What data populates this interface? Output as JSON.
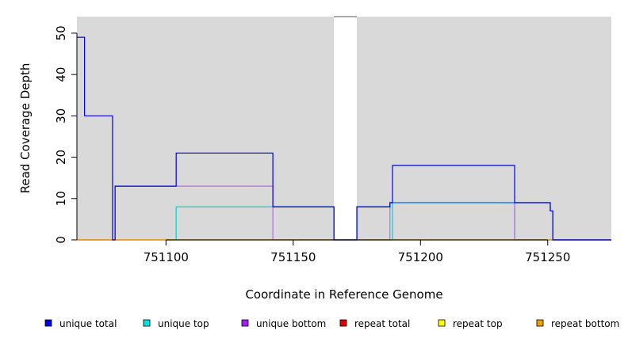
{
  "chart_data": {
    "type": "line",
    "xlabel": "Coordinate in Reference Genome",
    "ylabel": "Read Coverage Depth",
    "xlim": [
      751065,
      751275
    ],
    "ylim": [
      0,
      54
    ],
    "x_ticks": [
      751100,
      751150,
      751200,
      751250
    ],
    "x_tick_labels": [
      "751100",
      "751150",
      "751200",
      "751250"
    ],
    "y_ticks": [
      0,
      10,
      20,
      30,
      40,
      50
    ],
    "y_tick_labels": [
      "0",
      "10",
      "20",
      "30",
      "40",
      "50"
    ],
    "background_color": "#d9d9d9",
    "gap_region": [
      751166,
      751175
    ],
    "grid": false,
    "legend_placement": "bottom",
    "series": [
      {
        "name": "unique top",
        "color": "#00d0d0",
        "points": [
          [
            751065,
            0
          ],
          [
            751104,
            0
          ],
          [
            751104,
            8
          ],
          [
            751166,
            8
          ],
          [
            751166,
            0
          ],
          [
            751175,
            0
          ],
          [
            751189,
            0
          ],
          [
            751189,
            9
          ],
          [
            751237,
            9
          ],
          [
            751237,
            0
          ],
          [
            751275,
            0
          ]
        ]
      },
      {
        "name": "unique bottom",
        "color": "#b070e0",
        "points": [
          [
            751065,
            0
          ],
          [
            751080,
            0
          ],
          [
            751080,
            13
          ],
          [
            751142,
            13
          ],
          [
            751142,
            0
          ],
          [
            751166,
            0
          ],
          [
            751175,
            0
          ],
          [
            751188,
            0
          ],
          [
            751188,
            9
          ],
          [
            751237,
            9
          ],
          [
            751237,
            0
          ],
          [
            751275,
            0
          ]
        ]
      },
      {
        "name": "repeat total",
        "color": "#e00000",
        "points": [
          [
            751065,
            0
          ],
          [
            751275,
            0
          ]
        ]
      },
      {
        "name": "repeat top",
        "color": "#e0e000",
        "points": [
          [
            751065,
            0
          ],
          [
            751275,
            0
          ]
        ]
      },
      {
        "name": "repeat bottom",
        "color": "#f0a000",
        "points": [
          [
            751065,
            0
          ],
          [
            751275,
            0
          ]
        ]
      },
      {
        "name": "",
        "color": "#1a7ae8",
        "points": [
          [
            751142,
            8
          ],
          [
            751166,
            8
          ],
          [
            751166,
            0
          ],
          [
            751175,
            0
          ],
          [
            751175,
            8
          ],
          [
            751188,
            8
          ],
          [
            751188,
            9
          ],
          [
            751189,
            9
          ],
          [
            751189,
            9
          ],
          [
            751237,
            9
          ],
          [
            751237,
            9
          ],
          [
            751251,
            9
          ],
          [
            751251,
            7
          ],
          [
            751252,
            7
          ],
          [
            751252,
            0
          ],
          [
            751275,
            0
          ]
        ]
      },
      {
        "name": "unique total",
        "color": "#0000e0",
        "points": [
          [
            751065,
            49
          ],
          [
            751068,
            49
          ],
          [
            751068,
            30
          ],
          [
            751079,
            30
          ],
          [
            751079,
            0
          ],
          [
            751080,
            0
          ],
          [
            751080,
            13
          ],
          [
            751104,
            13
          ],
          [
            751104,
            21
          ],
          [
            751142,
            21
          ],
          [
            751142,
            8
          ],
          [
            751166,
            8
          ],
          [
            751166,
            0
          ],
          [
            751175,
            0
          ],
          [
            751175,
            8
          ],
          [
            751188,
            8
          ],
          [
            751188,
            9
          ],
          [
            751189,
            9
          ],
          [
            751189,
            18
          ],
          [
            751237,
            18
          ],
          [
            751237,
            9
          ],
          [
            751251,
            9
          ],
          [
            751251,
            7
          ],
          [
            751252,
            7
          ],
          [
            751252,
            0
          ],
          [
            751275,
            0
          ]
        ]
      }
    ],
    "legend": [
      {
        "label": "unique total",
        "color": "#0000e0"
      },
      {
        "label": "unique top",
        "color": "#00e0e0"
      },
      {
        "label": "unique bottom",
        "color": "#a020f0"
      },
      {
        "label": "repeat total",
        "color": "#e00000"
      },
      {
        "label": "repeat top",
        "color": "#ffff00"
      },
      {
        "label": "repeat bottom",
        "color": "#f0a000"
      }
    ]
  }
}
